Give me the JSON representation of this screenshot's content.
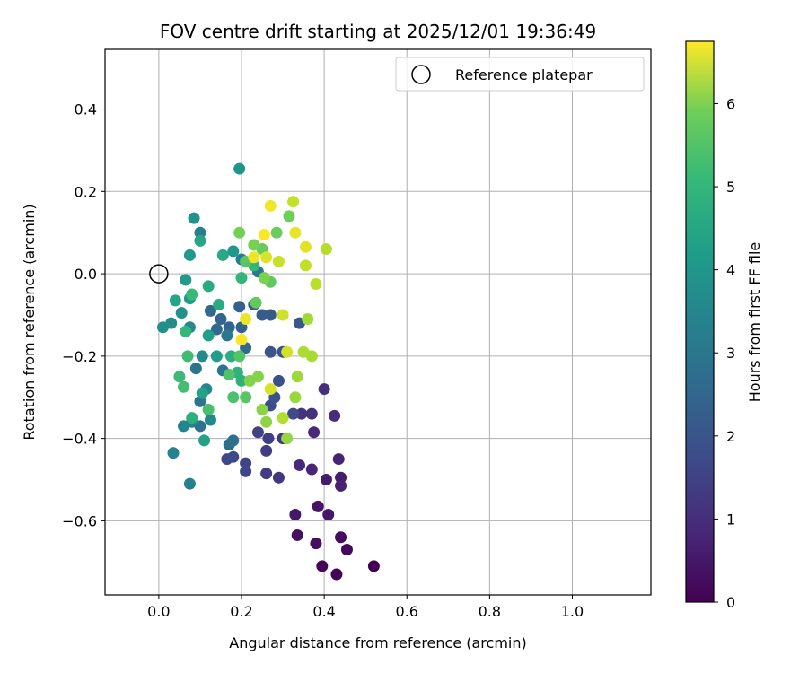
{
  "chart_data": {
    "type": "scatter",
    "title": "FOV centre drift starting at 2025/12/01 19:36:49",
    "xlabel": "Angular distance from reference (arcmin)",
    "ylabel": "Rotation from reference (arcmin)",
    "xlim": [
      -0.13,
      1.19
    ],
    "ylim": [
      -0.78,
      0.545
    ],
    "xticks": [
      0.0,
      0.2,
      0.4,
      0.6,
      0.8,
      1.0
    ],
    "xtick_labels": [
      "0.0",
      "0.2",
      "0.4",
      "0.6",
      "0.8",
      "1.0"
    ],
    "yticks": [
      -0.6,
      -0.4,
      -0.2,
      0.0,
      0.2,
      0.4
    ],
    "ytick_labels": [
      "−0.6",
      "−0.4",
      "−0.2",
      "0.0",
      "0.2",
      "0.4"
    ],
    "grid": true,
    "legend": {
      "position": "top-right",
      "label": "Reference platepar"
    },
    "reference_point": {
      "x": 0.0,
      "y": 0.0
    },
    "colorbar": {
      "label": "Hours from first FF file",
      "range": [
        0,
        6.75
      ],
      "ticks": [
        0,
        1,
        2,
        3,
        4,
        5,
        6
      ],
      "tick_labels": [
        "0",
        "1",
        "2",
        "3",
        "4",
        "5",
        "6"
      ],
      "colormap": "viridis"
    },
    "points": [
      {
        "x": 0.52,
        "y": -0.71,
        "t": 0.0
      },
      {
        "x": 0.43,
        "y": -0.73,
        "t": 0.05
      },
      {
        "x": 0.395,
        "y": -0.71,
        "t": 0.1
      },
      {
        "x": 0.455,
        "y": -0.67,
        "t": 0.15
      },
      {
        "x": 0.44,
        "y": -0.64,
        "t": 0.2
      },
      {
        "x": 0.38,
        "y": -0.655,
        "t": 0.25
      },
      {
        "x": 0.335,
        "y": -0.635,
        "t": 0.3
      },
      {
        "x": 0.385,
        "y": -0.565,
        "t": 0.35
      },
      {
        "x": 0.41,
        "y": -0.585,
        "t": 0.4
      },
      {
        "x": 0.33,
        "y": -0.585,
        "t": 0.45
      },
      {
        "x": 0.405,
        "y": -0.5,
        "t": 0.5
      },
      {
        "x": 0.44,
        "y": -0.495,
        "t": 0.55
      },
      {
        "x": 0.44,
        "y": -0.515,
        "t": 0.6
      },
      {
        "x": 0.435,
        "y": -0.45,
        "t": 0.65
      },
      {
        "x": 0.37,
        "y": -0.475,
        "t": 0.7
      },
      {
        "x": 0.34,
        "y": -0.465,
        "t": 0.75
      },
      {
        "x": 0.375,
        "y": -0.385,
        "t": 0.8
      },
      {
        "x": 0.425,
        "y": -0.345,
        "t": 0.85
      },
      {
        "x": 0.4,
        "y": -0.28,
        "t": 0.9
      },
      {
        "x": 0.37,
        "y": -0.34,
        "t": 0.95
      },
      {
        "x": 0.345,
        "y": -0.34,
        "t": 1.0
      },
      {
        "x": 0.3,
        "y": -0.4,
        "t": 1.05
      },
      {
        "x": 0.29,
        "y": -0.495,
        "t": 1.1
      },
      {
        "x": 0.26,
        "y": -0.485,
        "t": 1.15
      },
      {
        "x": 0.26,
        "y": -0.43,
        "t": 1.2
      },
      {
        "x": 0.265,
        "y": -0.4,
        "t": 1.25
      },
      {
        "x": 0.24,
        "y": -0.385,
        "t": 1.3
      },
      {
        "x": 0.21,
        "y": -0.46,
        "t": 1.35
      },
      {
        "x": 0.21,
        "y": -0.48,
        "t": 1.4
      },
      {
        "x": 0.165,
        "y": -0.45,
        "t": 1.45
      },
      {
        "x": 0.18,
        "y": -0.445,
        "t": 1.5
      },
      {
        "x": 0.325,
        "y": -0.34,
        "t": 1.55
      },
      {
        "x": 0.27,
        "y": -0.32,
        "t": 1.6
      },
      {
        "x": 0.29,
        "y": -0.26,
        "t": 1.65
      },
      {
        "x": 0.28,
        "y": -0.3,
        "t": 1.7
      },
      {
        "x": 0.3,
        "y": -0.19,
        "t": 1.75
      },
      {
        "x": 0.27,
        "y": -0.19,
        "t": 1.8
      },
      {
        "x": 0.34,
        "y": -0.12,
        "t": 1.85
      },
      {
        "x": 0.27,
        "y": -0.1,
        "t": 1.9
      },
      {
        "x": 0.25,
        "y": -0.1,
        "t": 1.95
      },
      {
        "x": 0.23,
        "y": -0.075,
        "t": 2.0
      },
      {
        "x": 0.2,
        "y": -0.13,
        "t": 2.05
      },
      {
        "x": 0.195,
        "y": -0.08,
        "t": 2.1
      },
      {
        "x": 0.17,
        "y": -0.13,
        "t": 2.15
      },
      {
        "x": 0.15,
        "y": -0.11,
        "t": 2.2
      },
      {
        "x": 0.14,
        "y": -0.135,
        "t": 2.25
      },
      {
        "x": 0.125,
        "y": -0.09,
        "t": 2.3
      },
      {
        "x": 0.21,
        "y": -0.18,
        "t": 2.35
      },
      {
        "x": 0.17,
        "y": -0.415,
        "t": 2.4
      },
      {
        "x": 0.18,
        "y": -0.405,
        "t": 2.45
      },
      {
        "x": 0.1,
        "y": -0.37,
        "t": 2.5
      },
      {
        "x": 0.1,
        "y": -0.31,
        "t": 2.55
      },
      {
        "x": 0.09,
        "y": -0.23,
        "t": 2.6
      },
      {
        "x": 0.155,
        "y": -0.235,
        "t": 2.65
      },
      {
        "x": 0.165,
        "y": -0.15,
        "t": 2.7
      },
      {
        "x": 0.24,
        "y": 0.005,
        "t": 2.75
      },
      {
        "x": 0.2,
        "y": 0.035,
        "t": 2.8
      },
      {
        "x": 0.1,
        "y": 0.1,
        "t": 2.85
      },
      {
        "x": 0.08,
        "y": -0.36,
        "t": 2.9
      },
      {
        "x": 0.075,
        "y": -0.51,
        "t": 2.95
      },
      {
        "x": 0.035,
        "y": -0.435,
        "t": 3.0
      },
      {
        "x": 0.06,
        "y": -0.37,
        "t": 3.05
      },
      {
        "x": 0.115,
        "y": -0.28,
        "t": 3.1
      },
      {
        "x": 0.125,
        "y": -0.355,
        "t": 3.15
      },
      {
        "x": 0.105,
        "y": -0.2,
        "t": 3.2
      },
      {
        "x": 0.075,
        "y": -0.13,
        "t": 3.25
      },
      {
        "x": 0.03,
        "y": -0.12,
        "t": 3.3
      },
      {
        "x": 0.01,
        "y": -0.13,
        "t": 3.35
      },
      {
        "x": 0.055,
        "y": -0.095,
        "t": 3.4
      },
      {
        "x": 0.085,
        "y": 0.135,
        "t": 3.45
      },
      {
        "x": 0.195,
        "y": 0.255,
        "t": 3.5
      },
      {
        "x": 0.18,
        "y": 0.055,
        "t": 3.55
      },
      {
        "x": 0.075,
        "y": 0.045,
        "t": 3.6
      },
      {
        "x": 0.065,
        "y": -0.015,
        "t": 3.65
      },
      {
        "x": 0.075,
        "y": -0.06,
        "t": 3.7
      },
      {
        "x": 0.14,
        "y": -0.2,
        "t": 3.75
      },
      {
        "x": 0.12,
        "y": -0.15,
        "t": 3.8
      },
      {
        "x": 0.11,
        "y": -0.405,
        "t": 3.85
      },
      {
        "x": 0.105,
        "y": -0.29,
        "t": 3.9
      },
      {
        "x": 0.04,
        "y": -0.065,
        "t": 3.95
      },
      {
        "x": 0.1,
        "y": 0.08,
        "t": 4.0
      },
      {
        "x": 0.155,
        "y": 0.045,
        "t": 4.05
      },
      {
        "x": 0.12,
        "y": -0.03,
        "t": 4.1
      },
      {
        "x": 0.145,
        "y": -0.075,
        "t": 4.15
      },
      {
        "x": 0.175,
        "y": -0.2,
        "t": 4.2
      },
      {
        "x": 0.08,
        "y": -0.35,
        "t": 4.25
      },
      {
        "x": 0.2,
        "y": -0.26,
        "t": 4.3
      },
      {
        "x": 0.19,
        "y": -0.24,
        "t": 4.35
      },
      {
        "x": 0.2,
        "y": -0.01,
        "t": 4.4
      },
      {
        "x": 0.23,
        "y": 0.02,
        "t": 4.45
      },
      {
        "x": 0.065,
        "y": -0.14,
        "t": 4.5
      },
      {
        "x": 0.08,
        "y": -0.05,
        "t": 4.55
      },
      {
        "x": 0.05,
        "y": -0.25,
        "t": 4.6
      },
      {
        "x": 0.07,
        "y": -0.2,
        "t": 4.65
      },
      {
        "x": 0.06,
        "y": -0.275,
        "t": 4.7
      },
      {
        "x": 0.12,
        "y": -0.33,
        "t": 4.75
      },
      {
        "x": 0.18,
        "y": -0.3,
        "t": 4.8
      },
      {
        "x": 0.17,
        "y": -0.245,
        "t": 4.85
      },
      {
        "x": 0.195,
        "y": -0.2,
        "t": 4.9
      },
      {
        "x": 0.21,
        "y": -0.3,
        "t": 4.95
      },
      {
        "x": 0.21,
        "y": 0.03,
        "t": 5.0
      },
      {
        "x": 0.27,
        "y": -0.02,
        "t": 5.05
      },
      {
        "x": 0.235,
        "y": -0.07,
        "t": 5.1
      },
      {
        "x": 0.25,
        "y": 0.06,
        "t": 5.15
      },
      {
        "x": 0.285,
        "y": 0.1,
        "t": 5.2
      },
      {
        "x": 0.315,
        "y": 0.14,
        "t": 5.25
      },
      {
        "x": 0.195,
        "y": 0.1,
        "t": 5.3
      },
      {
        "x": 0.23,
        "y": 0.07,
        "t": 5.35
      },
      {
        "x": 0.255,
        "y": -0.01,
        "t": 5.4
      },
      {
        "x": 0.22,
        "y": -0.26,
        "t": 5.45
      },
      {
        "x": 0.24,
        "y": -0.25,
        "t": 5.5
      },
      {
        "x": 0.25,
        "y": -0.33,
        "t": 5.55
      },
      {
        "x": 0.26,
        "y": -0.36,
        "t": 5.6
      },
      {
        "x": 0.31,
        "y": -0.4,
        "t": 5.65
      },
      {
        "x": 0.33,
        "y": -0.3,
        "t": 5.7
      },
      {
        "x": 0.335,
        "y": -0.25,
        "t": 5.75
      },
      {
        "x": 0.36,
        "y": -0.11,
        "t": 5.8
      },
      {
        "x": 0.37,
        "y": -0.2,
        "t": 5.85
      },
      {
        "x": 0.35,
        "y": -0.19,
        "t": 5.9
      },
      {
        "x": 0.3,
        "y": -0.35,
        "t": 5.95
      },
      {
        "x": 0.405,
        "y": 0.06,
        "t": 6.0
      },
      {
        "x": 0.38,
        "y": -0.025,
        "t": 6.05
      },
      {
        "x": 0.355,
        "y": 0.02,
        "t": 6.1
      },
      {
        "x": 0.325,
        "y": 0.175,
        "t": 6.15
      },
      {
        "x": 0.29,
        "y": 0.03,
        "t": 6.2
      },
      {
        "x": 0.3,
        "y": -0.1,
        "t": 6.25
      },
      {
        "x": 0.31,
        "y": -0.19,
        "t": 6.3
      },
      {
        "x": 0.27,
        "y": -0.28,
        "t": 6.35
      },
      {
        "x": 0.26,
        "y": 0.04,
        "t": 6.4
      },
      {
        "x": 0.355,
        "y": 0.065,
        "t": 6.45
      },
      {
        "x": 0.33,
        "y": 0.1,
        "t": 6.5
      },
      {
        "x": 0.21,
        "y": -0.11,
        "t": 6.55
      },
      {
        "x": 0.23,
        "y": 0.04,
        "t": 6.6
      },
      {
        "x": 0.27,
        "y": 0.165,
        "t": 6.65
      },
      {
        "x": 0.2,
        "y": -0.16,
        "t": 6.7
      },
      {
        "x": 0.255,
        "y": 0.095,
        "t": 6.75
      }
    ]
  }
}
